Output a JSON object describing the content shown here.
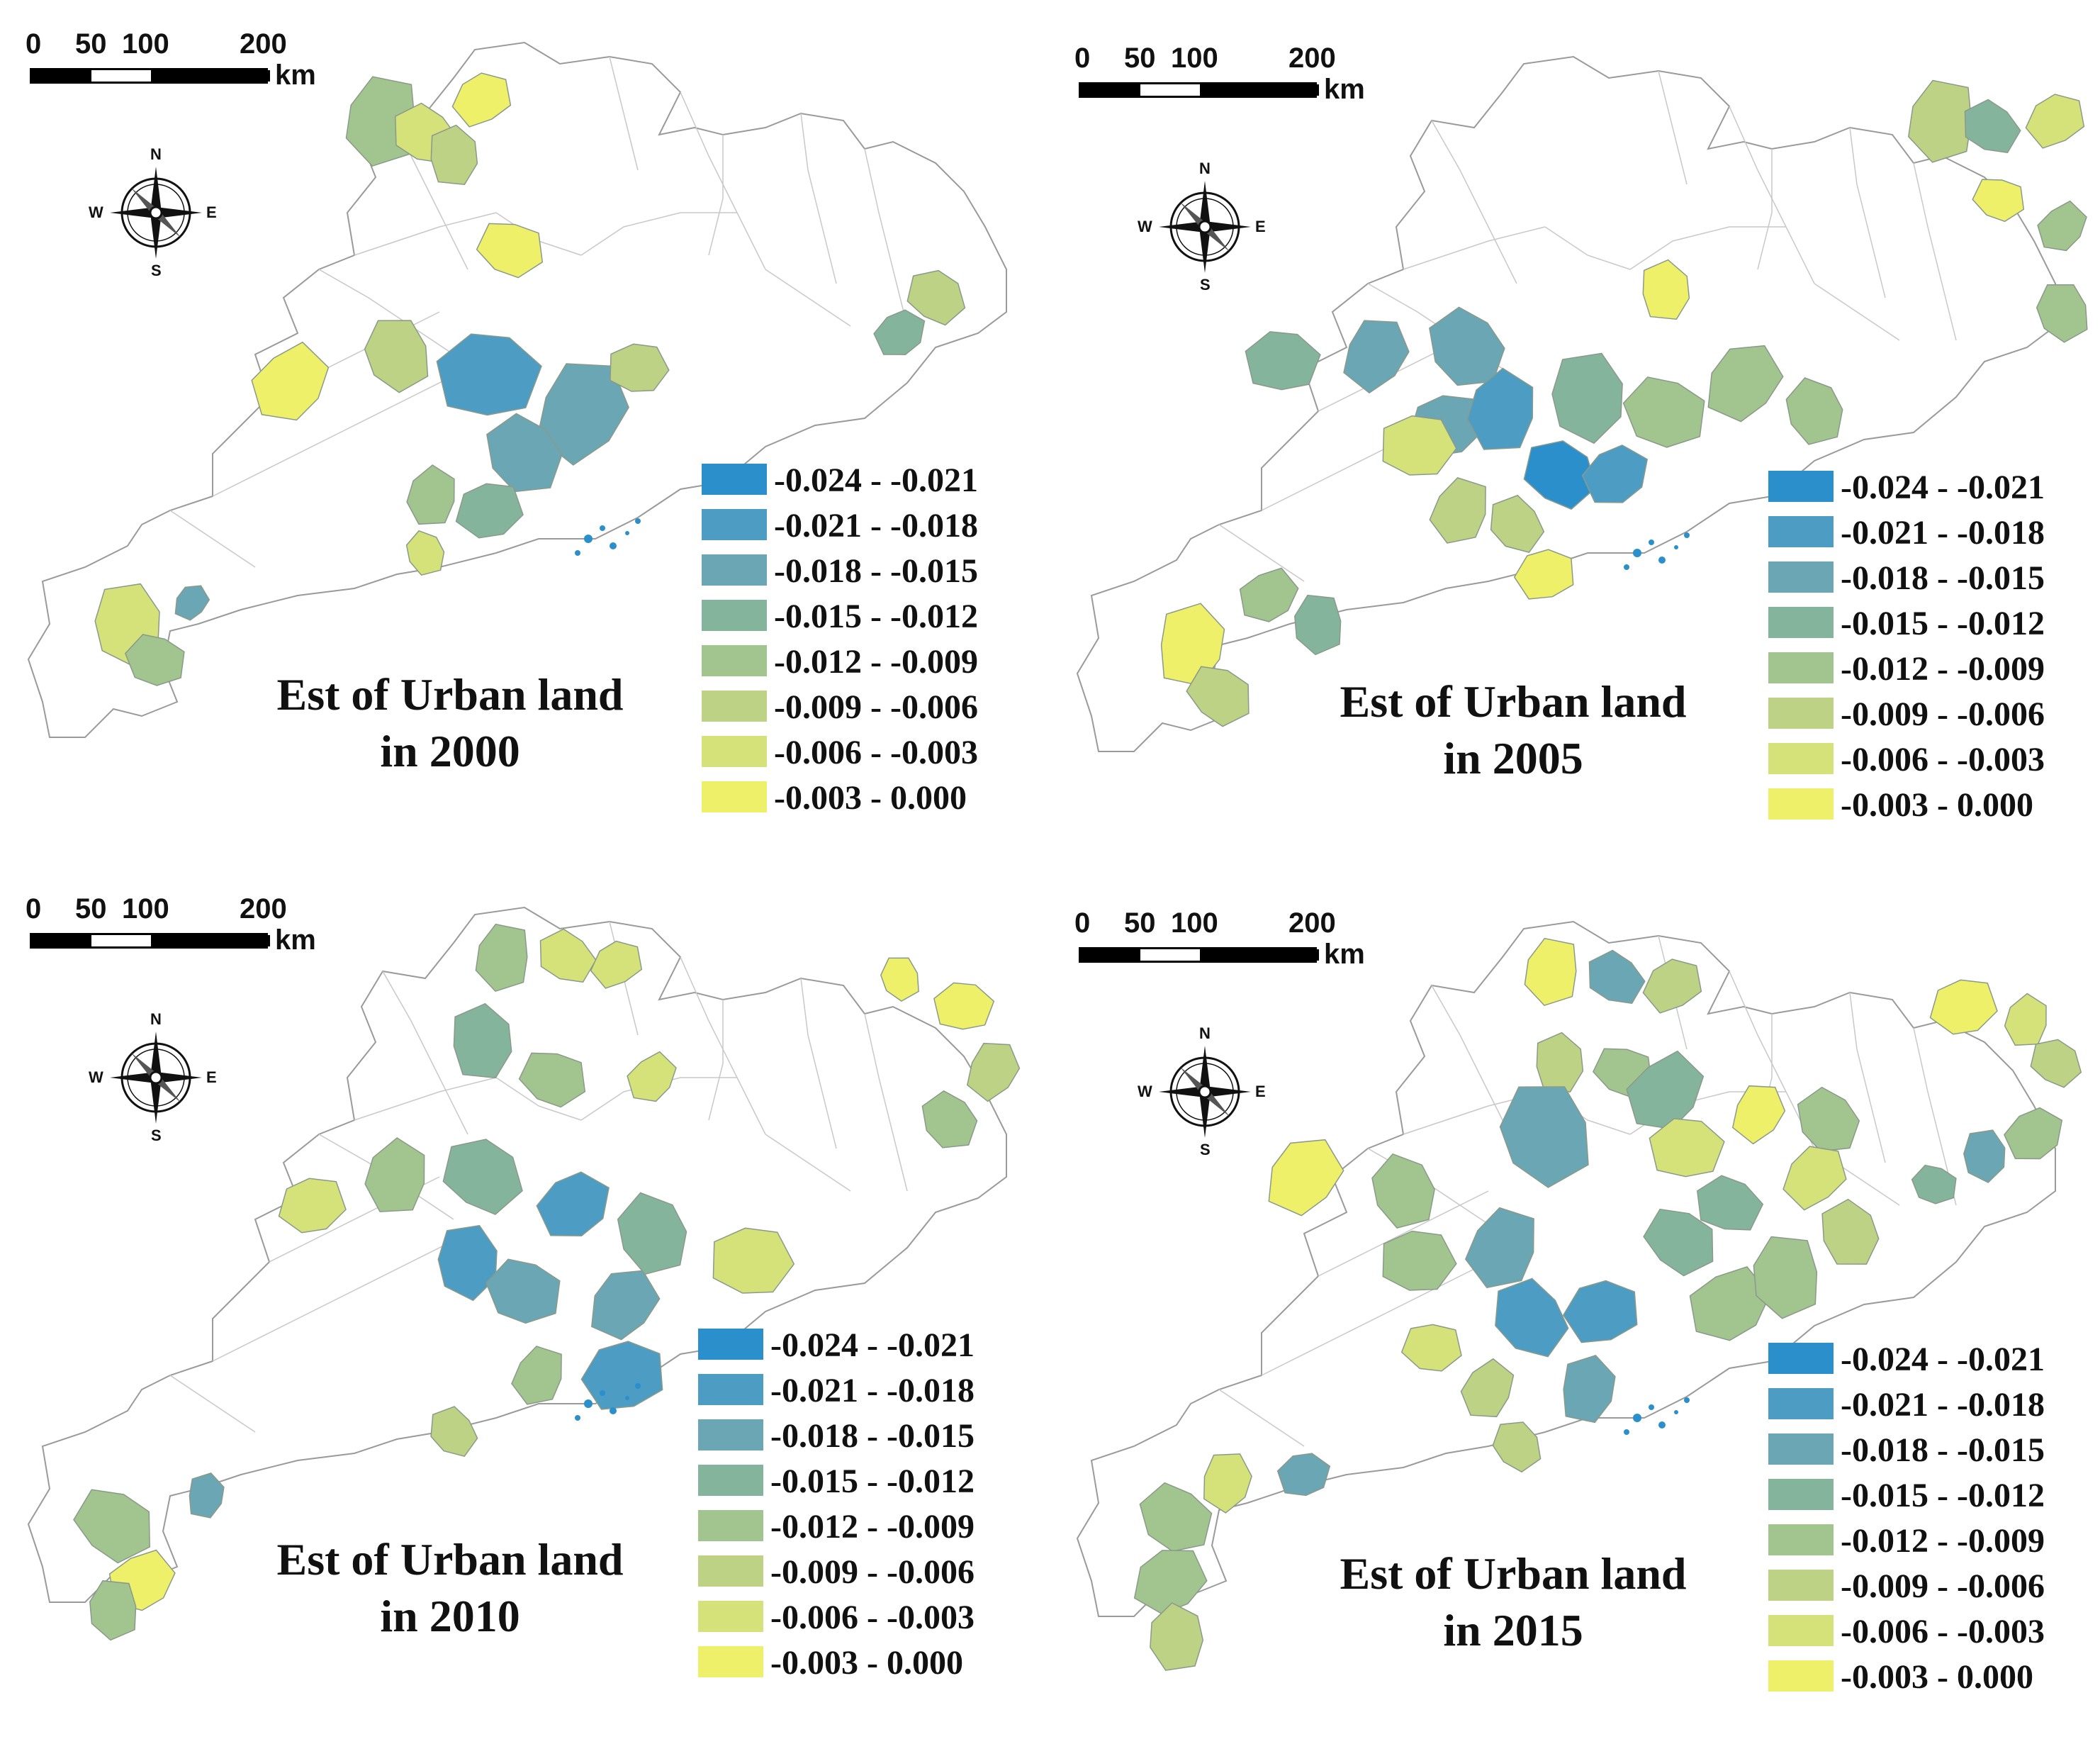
{
  "scale": {
    "labels": [
      "0",
      "50",
      "100",
      "200"
    ],
    "unit": "km"
  },
  "compass": {
    "n": "N",
    "s": "S",
    "e": "E",
    "w": "W"
  },
  "colors": {
    "c1": "#2b8fcc",
    "c2": "#4c9cc4",
    "c3": "#6aa6b4",
    "c4": "#85b49c",
    "c5": "#a2c48e",
    "c6": "#bdd284",
    "c7": "#d5e27a",
    "c8": "#eff06a",
    "none": "#ffffff"
  },
  "legend": {
    "classes": [
      {
        "label": "-0.024 - -0.021",
        "color": "#2b8fcc"
      },
      {
        "label": "-0.021 - -0.018",
        "color": "#4c9cc4"
      },
      {
        "label": "-0.018 - -0.015",
        "color": "#6aa6b4"
      },
      {
        "label": "-0.015 - -0.012",
        "color": "#85b49c"
      },
      {
        "label": "-0.012 - -0.009",
        "color": "#a2c48e"
      },
      {
        "label": "-0.009 - -0.006",
        "color": "#bdd284"
      },
      {
        "label": "-0.006 - -0.003",
        "color": "#d5e27a"
      },
      {
        "label": "-0.003 - 0.000",
        "color": "#eff06a"
      }
    ]
  },
  "maps": [
    {
      "title_line1": "Est of Urban land",
      "title_line2": "in 2000"
    },
    {
      "title_line1": "Est of Urban land",
      "title_line2": "in 2005"
    },
    {
      "title_line1": "Est of Urban land",
      "title_line2": "in 2010"
    },
    {
      "title_line1": "Est of Urban land",
      "title_line2": "in 2015"
    }
  ]
}
